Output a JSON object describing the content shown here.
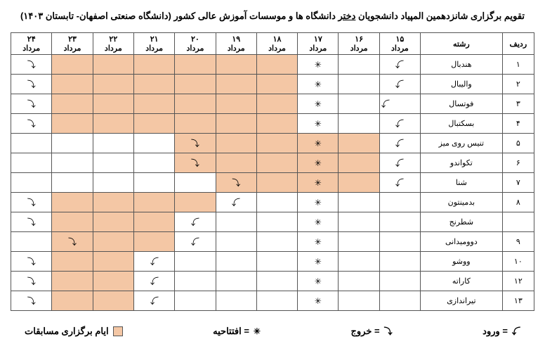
{
  "title_prefix": "تقویم برگزاری شانزدهمین المپیاد دانشجویان ",
  "title_underline": "دختر",
  "title_suffix": " دانشگاه ها و موسسات آموزش عالی کشور (دانشگاه صنعتی اصفهان- تابستان ۱۴۰۳)",
  "headers": {
    "row_num": "ردیف",
    "sport": "رشته"
  },
  "month_label": "مرداد",
  "days": [
    "۱۵",
    "۱۶",
    "۱۷",
    "۱۸",
    "۱۹",
    "۲۰",
    "۲۱",
    "۲۲",
    "۲۳",
    "۲۴"
  ],
  "symbols": {
    "enter": "⇩",
    "exit": "⇩",
    "opening": "✳"
  },
  "legend": {
    "enter": "= ورود",
    "exit": "= خروج",
    "opening": "= افتتاحیه",
    "competition": "ایام برگزاری مسابقات"
  },
  "rows": [
    {
      "num": "۱",
      "sport": "هندبال",
      "cells": [
        {
          "s": "en"
        },
        {
          "s": ""
        },
        {
          "s": "op"
        },
        {
          "s": "",
          "h": true
        },
        {
          "s": "",
          "h": true
        },
        {
          "s": "",
          "h": true
        },
        {
          "s": "",
          "h": true
        },
        {
          "s": "",
          "h": true
        },
        {
          "s": "",
          "h": true
        },
        {
          "s": "ex"
        }
      ]
    },
    {
      "num": "۲",
      "sport": "والیبال",
      "cells": [
        {
          "s": "en"
        },
        {
          "s": ""
        },
        {
          "s": "op"
        },
        {
          "s": "",
          "h": true
        },
        {
          "s": "",
          "h": true
        },
        {
          "s": "",
          "h": true
        },
        {
          "s": "",
          "h": true
        },
        {
          "s": "",
          "h": true
        },
        {
          "s": "",
          "h": true
        },
        {
          "s": "ex"
        }
      ]
    },
    {
      "num": "۳",
      "sport": "فوتسال",
      "cells": [
        {
          "s": "en2"
        },
        {
          "s": ""
        },
        {
          "s": "op"
        },
        {
          "s": "",
          "h": true
        },
        {
          "s": "",
          "h": true
        },
        {
          "s": "",
          "h": true
        },
        {
          "s": "",
          "h": true
        },
        {
          "s": "",
          "h": true
        },
        {
          "s": "",
          "h": true
        },
        {
          "s": "ex"
        }
      ]
    },
    {
      "num": "۴",
      "sport": "بسکتبال",
      "cells": [
        {
          "s": "en"
        },
        {
          "s": ""
        },
        {
          "s": "op"
        },
        {
          "s": "",
          "h": true
        },
        {
          "s": "",
          "h": true
        },
        {
          "s": "",
          "h": true
        },
        {
          "s": "",
          "h": true
        },
        {
          "s": "",
          "h": true
        },
        {
          "s": "",
          "h": true
        },
        {
          "s": "ex"
        }
      ]
    },
    {
      "num": "۵",
      "sport": "تنیس روی میز",
      "cells": [
        {
          "s": "en"
        },
        {
          "s": "",
          "h": true
        },
        {
          "s": "op",
          "h": true
        },
        {
          "s": "",
          "h": true
        },
        {
          "s": "",
          "h": true
        },
        {
          "s": "ex",
          "h": true
        },
        {
          "s": ""
        },
        {
          "s": ""
        },
        {
          "s": ""
        },
        {
          "s": ""
        }
      ]
    },
    {
      "num": "۶",
      "sport": "تکواندو",
      "cells": [
        {
          "s": "en"
        },
        {
          "s": "",
          "h": true
        },
        {
          "s": "op",
          "h": true
        },
        {
          "s": "",
          "h": true
        },
        {
          "s": "",
          "h": true
        },
        {
          "s": "ex",
          "h": true
        },
        {
          "s": ""
        },
        {
          "s": ""
        },
        {
          "s": ""
        },
        {
          "s": ""
        }
      ]
    },
    {
      "num": "۷",
      "sport": "شنا",
      "cells": [
        {
          "s": "en"
        },
        {
          "s": "",
          "h": true
        },
        {
          "s": "op",
          "h": true
        },
        {
          "s": "",
          "h": true
        },
        {
          "s": "ex",
          "h": true
        },
        {
          "s": ""
        },
        {
          "s": ""
        },
        {
          "s": ""
        },
        {
          "s": ""
        },
        {
          "s": ""
        }
      ]
    },
    {
      "num": "۸",
      "sport": "بدمینتون",
      "cells": [
        {
          "s": ""
        },
        {
          "s": ""
        },
        {
          "s": "op"
        },
        {
          "s": ""
        },
        {
          "s": "en"
        },
        {
          "s": "",
          "h": true
        },
        {
          "s": "",
          "h": true
        },
        {
          "s": "",
          "h": true
        },
        {
          "s": "",
          "h": true
        },
        {
          "s": "ex"
        }
      ]
    },
    {
      "num": "",
      "sport": "شطرنج",
      "cells": [
        {
          "s": ""
        },
        {
          "s": ""
        },
        {
          "s": "op"
        },
        {
          "s": ""
        },
        {
          "s": ""
        },
        {
          "s": "en"
        },
        {
          "s": "",
          "h": true
        },
        {
          "s": "",
          "h": true
        },
        {
          "s": "",
          "h": true
        },
        {
          "s": "ex"
        }
      ]
    },
    {
      "num": "۹",
      "sport": "دوومیدانی",
      "cells": [
        {
          "s": ""
        },
        {
          "s": ""
        },
        {
          "s": "op"
        },
        {
          "s": ""
        },
        {
          "s": ""
        },
        {
          "s": "en"
        },
        {
          "s": "",
          "h": true
        },
        {
          "s": "",
          "h": true
        },
        {
          "s": "ex",
          "h": true
        },
        {
          "s": ""
        }
      ]
    },
    {
      "num": "۱۰",
      "sport": "ووشو",
      "cells": [
        {
          "s": ""
        },
        {
          "s": ""
        },
        {
          "s": "op"
        },
        {
          "s": ""
        },
        {
          "s": ""
        },
        {
          "s": ""
        },
        {
          "s": "en"
        },
        {
          "s": "",
          "h": true
        },
        {
          "s": "",
          "h": true
        },
        {
          "s": "ex"
        }
      ]
    },
    {
      "num": "۱۲",
      "sport": "کاراته",
      "cells": [
        {
          "s": ""
        },
        {
          "s": ""
        },
        {
          "s": "op"
        },
        {
          "s": ""
        },
        {
          "s": ""
        },
        {
          "s": ""
        },
        {
          "s": "en"
        },
        {
          "s": "",
          "h": true
        },
        {
          "s": "",
          "h": true
        },
        {
          "s": "ex"
        }
      ]
    },
    {
      "num": "۱۳",
      "sport": "تیراندازی",
      "cells": [
        {
          "s": ""
        },
        {
          "s": ""
        },
        {
          "s": "op"
        },
        {
          "s": ""
        },
        {
          "s": ""
        },
        {
          "s": ""
        },
        {
          "s": "en"
        },
        {
          "s": "",
          "h": true
        },
        {
          "s": "",
          "h": true
        },
        {
          "s": "ex"
        }
      ]
    }
  ],
  "colors": {
    "highlight": "#f4c7a5",
    "border": "#555555",
    "background": "#ffffff"
  }
}
